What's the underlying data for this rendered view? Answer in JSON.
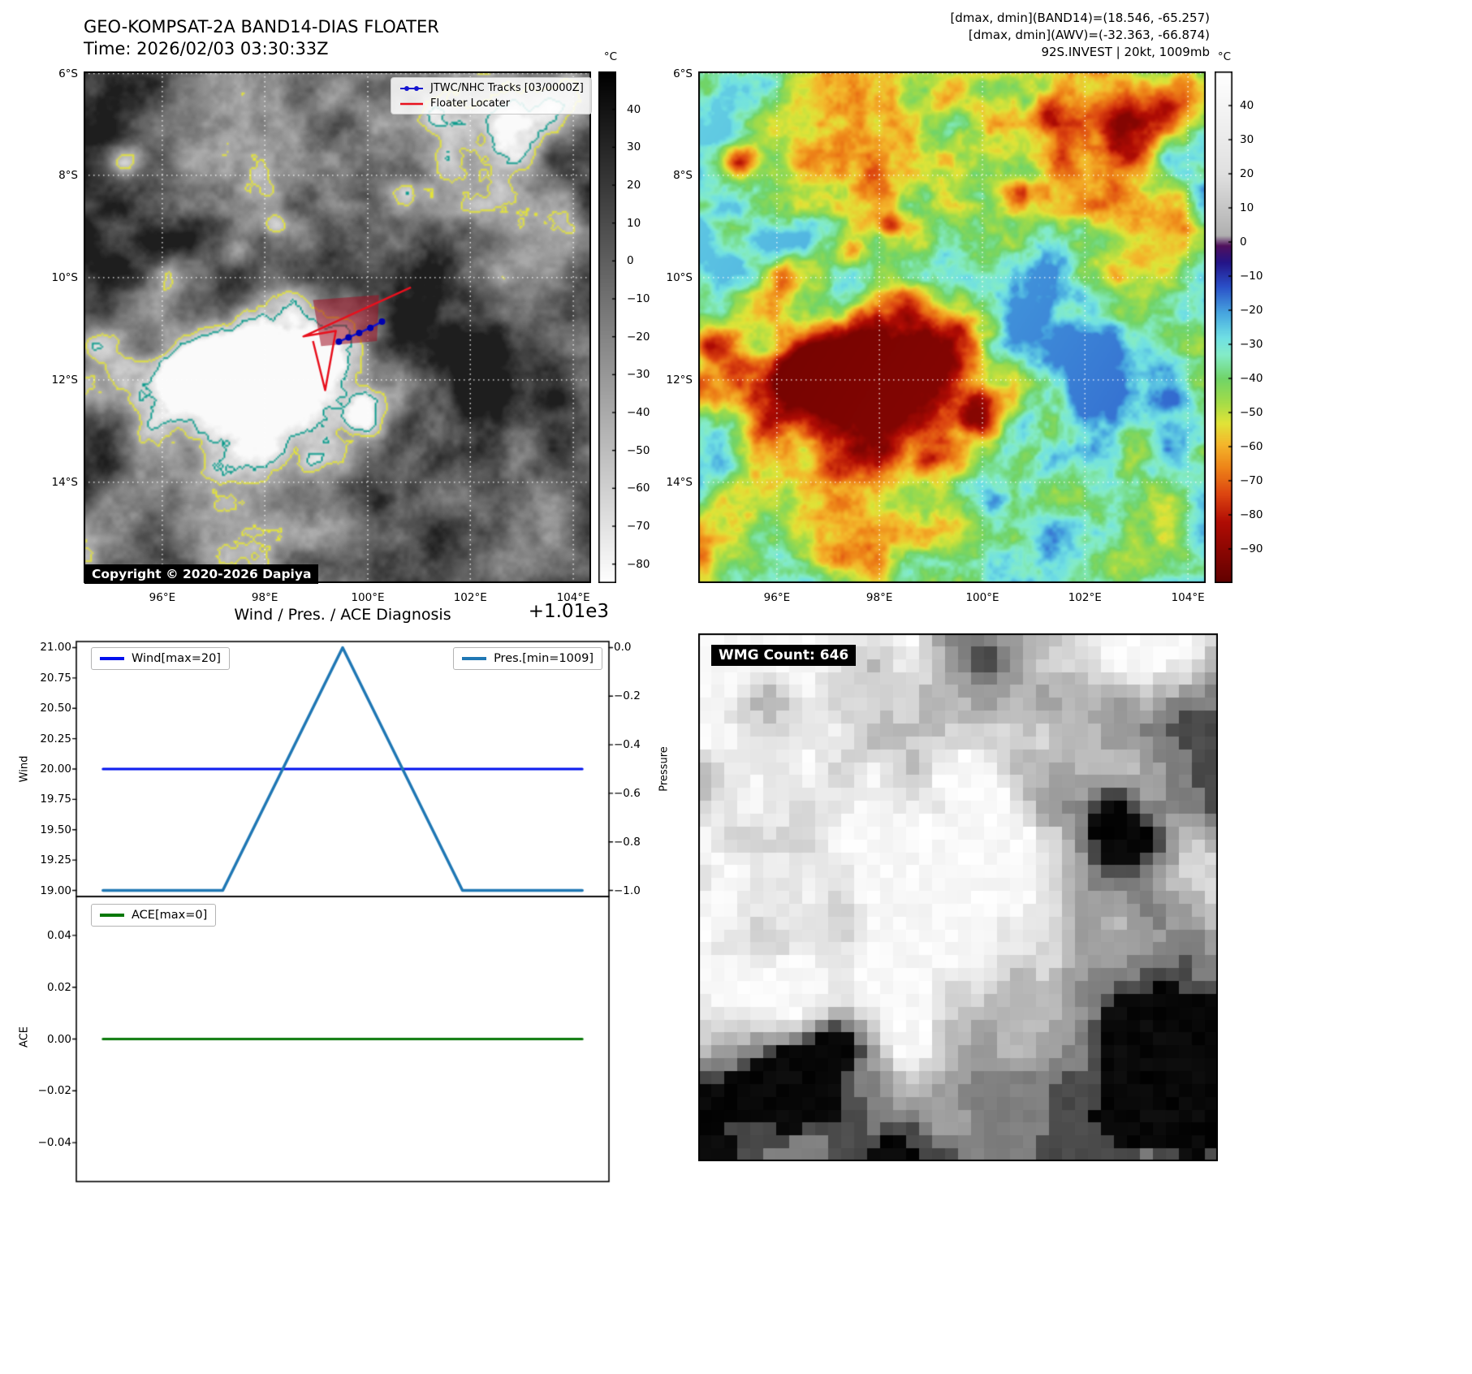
{
  "band14_panel": {
    "title": "GEO-KOMPSAT-2A BAND14-DIAS FLOATER",
    "time_line": "Time: 2026/02/03 03:30:33Z",
    "copyright": "Copyright © 2020-2026 Dapiya",
    "legend": [
      {
        "label": "JTWC/NHC Tracks [03/0000Z]",
        "color": "#1515d0"
      },
      {
        "label": "Floater Locater",
        "color": "#e8101d"
      }
    ],
    "lat_ticks": [
      "6°S",
      "8°S",
      "10°S",
      "12°S",
      "14°S"
    ],
    "lon_ticks": [
      "96°E",
      "98°E",
      "100°E",
      "102°E",
      "104°E"
    ],
    "colorbar": {
      "unit": "°C",
      "ticks": [
        40,
        30,
        20,
        10,
        0,
        -10,
        -20,
        -30,
        -40,
        -50,
        -60,
        -70,
        -80
      ],
      "vmax": 50,
      "vmin": -85
    }
  },
  "awv_panel": {
    "header_lines": [
      "[dmax, dmin](BAND14)=(18.546, -65.257)",
      "[dmax, dmin](AWV)=(-32.363, -66.874)",
      "92S.INVEST | 20kt, 1009mb"
    ],
    "lat_ticks": [
      "6°S",
      "8°S",
      "10°S",
      "12°S",
      "14°S"
    ],
    "lon_ticks": [
      "96°E",
      "98°E",
      "100°E",
      "102°E",
      "104°E"
    ],
    "colorbar": {
      "unit": "°C",
      "ticks": [
        40,
        30,
        20,
        10,
        0,
        -10,
        -20,
        -30,
        -40,
        -50,
        -60,
        -70,
        -80,
        -90
      ],
      "vmax": 50,
      "vmin": -100,
      "stops": [
        [
          50,
          "#ffffff"
        ],
        [
          20,
          "#e0e0e0"
        ],
        [
          2,
          "#b0b0b0"
        ],
        [
          -1,
          "#50105c"
        ],
        [
          -6,
          "#241488"
        ],
        [
          -13,
          "#2a50c8"
        ],
        [
          -21,
          "#48a8e0"
        ],
        [
          -28,
          "#70e0e4"
        ],
        [
          -33,
          "#84ecc8"
        ],
        [
          -40,
          "#70d468"
        ],
        [
          -47,
          "#a4dc48"
        ],
        [
          -53,
          "#e0e438"
        ],
        [
          -59,
          "#f4b82c"
        ],
        [
          -66,
          "#ee8418"
        ],
        [
          -74,
          "#dc4410"
        ],
        [
          -82,
          "#b00c04"
        ],
        [
          -100,
          "#600000"
        ]
      ]
    }
  },
  "chart_data": {
    "type": "line",
    "title": "Wind / Pres. / ACE Diagnosis",
    "offset_text": "+1.01e3",
    "subplots": [
      {
        "name": "wind_pressure",
        "left_axis": {
          "label": "Wind",
          "tick_labels": [
            "21.00",
            "20.75",
            "20.50",
            "20.25",
            "20.00",
            "19.75",
            "19.50",
            "19.25",
            "19.00"
          ],
          "lim": [
            18.95,
            21.05
          ]
        },
        "right_axis": {
          "label": "Pressure",
          "tick_labels": [
            "0.0",
            "-0.2",
            "-0.4",
            "-0.6",
            "-0.8",
            "-1.0"
          ],
          "lim": [
            -1.025,
            0.025
          ]
        },
        "series": [
          {
            "name": "Wind[max=20]",
            "axis": "left",
            "color": "#0010ee",
            "width": 3,
            "x": [
              0,
              1
            ],
            "y": [
              20,
              20
            ]
          },
          {
            "name": "Pres.[min=1009]",
            "axis": "right",
            "color": "#1f77b4",
            "width": 3.5,
            "x": [
              0,
              0.25,
              0.5,
              0.75,
              1
            ],
            "y": [
              -1,
              -1,
              0,
              -1,
              -1
            ],
            "y_hpa": [
              1009,
              1009,
              1010,
              1009,
              1009
            ]
          }
        ]
      },
      {
        "name": "ace",
        "left_axis": {
          "label": "ACE",
          "tick_labels": [
            "0.04",
            "0.02",
            "0.00",
            "-0.02",
            "-0.04"
          ],
          "lim": [
            -0.055,
            0.055
          ]
        },
        "series": [
          {
            "name": "ACE[max=0]",
            "axis": "left",
            "color": "#087808",
            "width": 3,
            "x": [
              0,
              1
            ],
            "y": [
              0,
              0
            ]
          }
        ]
      }
    ]
  },
  "wmg_panel": {
    "label": "WMG Count: 646"
  }
}
